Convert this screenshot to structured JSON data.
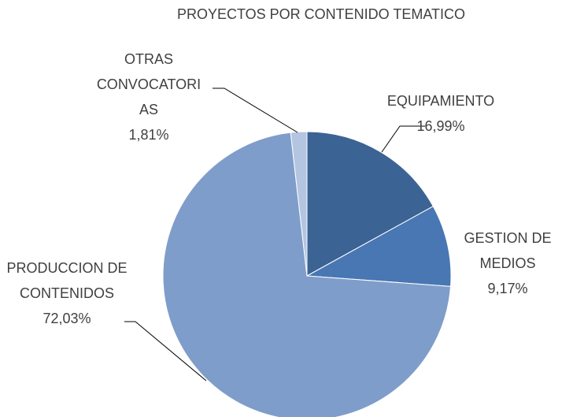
{
  "chart_data": {
    "type": "pie",
    "title": "PROYECTOS POR CONTENIDO TEMATICO",
    "categories": [
      "EQUIPAMIENTO",
      "GESTION DE MEDIOS",
      "PRODUCCION DE CONTENIDOS",
      "OTRAS CONVOCATORIAS"
    ],
    "values": [
      16.99,
      9.17,
      72.03,
      1.81
    ],
    "value_labels": [
      "16,99%",
      "9,17%",
      "72,03%",
      "1,81%"
    ],
    "colors": [
      "#3b6394",
      "#4877b3",
      "#7f9dca",
      "#b4c5e2"
    ]
  }
}
